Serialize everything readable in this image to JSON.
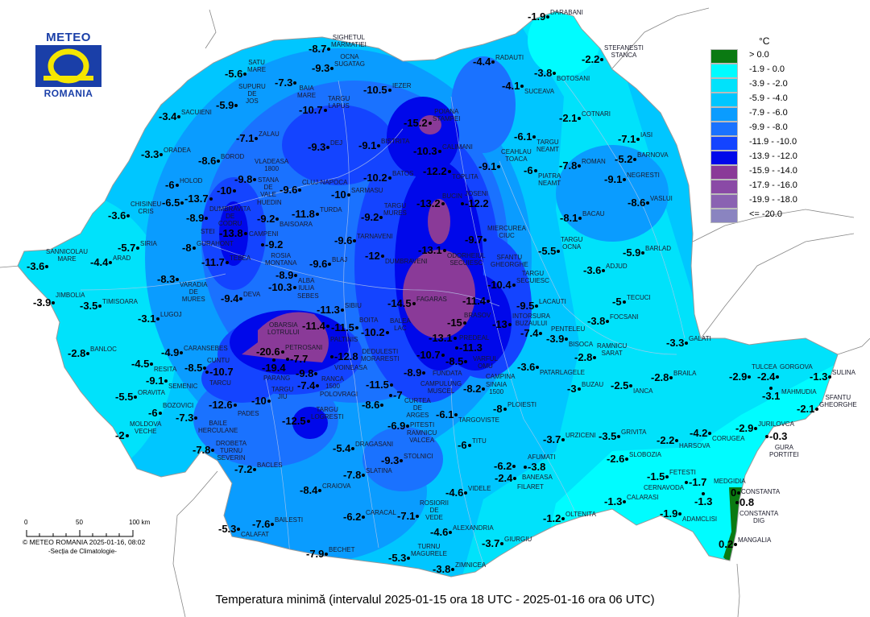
{
  "logo": {
    "top": "METEO",
    "bottom": "ROMANIA"
  },
  "legend": {
    "unit": "°C",
    "classes": [
      {
        "label": "> 0.0",
        "color": "#0a7a12"
      },
      {
        "label": "-1.9 - 0.0",
        "color": "#00fcff"
      },
      {
        "label": "-3.9 - -2.0",
        "color": "#00e2fb"
      },
      {
        "label": "-5.9 - -4.0",
        "color": "#00c6ff"
      },
      {
        "label": "-7.9 - -6.0",
        "color": "#0a9cff"
      },
      {
        "label": "-9.9 - -8.0",
        "color": "#1a72ff"
      },
      {
        "label": "-11.9 - -10.0",
        "color": "#1444ff"
      },
      {
        "label": "-13.9 - -12.0",
        "color": "#0008ea"
      },
      {
        "label": "-15.9 - -14.0",
        "color": "#8a3a98"
      },
      {
        "label": "-17.9 - -16.0",
        "color": "#8a4aa6"
      },
      {
        "label": "-19.9 - -18.0",
        "color": "#8a62b2"
      },
      {
        "label": "<= -20.0",
        "color": "#8a84c0"
      }
    ]
  },
  "scale_bar": {
    "ticks": [
      "0",
      "50",
      "100 km"
    ],
    "copyright": "© METEO ROMANIA 2025-01-16, 08:02",
    "section": "-Secția de Climatologie-"
  },
  "caption": "Temperatura minimă (intervalul 2025-01-15 ora 18 UTC - 2025-01-16 ora 06 UTC)",
  "stations": [
    {
      "name": "SACUIENI",
      "value": "-3.4"
    },
    {
      "name": "ORADEA",
      "value": "-3.3"
    },
    {
      "name": "BOROD",
      "value": "-8.6"
    },
    {
      "name": "HOLOD",
      "value": "-6"
    },
    {
      "name": "DUMBRAVITA\nDE\nCODRU",
      "value": "-6.5"
    },
    {
      "name": "STANA\nDE\nVALE",
      "value": "-13.7"
    },
    {
      "name": "CHISINEU\nCRIS",
      "value": "-3.6"
    },
    {
      "name": "STEI",
      "value": "-8.9"
    },
    {
      "name": "SIRIA",
      "value": "-5.7"
    },
    {
      "name": "GURAHONT",
      "value": "-8"
    },
    {
      "name": "SANNICOLAU\nMARE",
      "value": "-3.6"
    },
    {
      "name": "ARAD",
      "value": "-4.4"
    },
    {
      "name": "VARADIA\nDE\nMURES",
      "value": "-8.3"
    },
    {
      "name": "TEBEA",
      "value": "-11.7"
    },
    {
      "name": "SIGHETUL\nMARMATIEI",
      "value": "-8.7"
    },
    {
      "name": "OCNA\nSUGATAG",
      "value": "-9.3"
    },
    {
      "name": "SATU\nMARE",
      "value": "-5.6"
    },
    {
      "name": "BAIA\nMARE",
      "value": "-7.3"
    },
    {
      "name": "SUPURU\nDE\nJOS",
      "value": "-5.9"
    },
    {
      "name": "IEZER",
      "value": "-10.5"
    },
    {
      "name": "TARGU\nLAPUS",
      "value": "-10.7"
    },
    {
      "name": "ZALAU",
      "value": "-7.1"
    },
    {
      "name": "DEJ",
      "value": "-9.3"
    },
    {
      "name": "BISTRITA",
      "value": "-9.1"
    },
    {
      "name": "BAISOARA",
      "value": "-9.2"
    },
    {
      "name": "VLADEASA\n1800",
      "value": "-10"
    },
    {
      "name": "HUEDIN",
      "value": "-9.8"
    },
    {
      "name": "CLUJ-NAPOCA",
      "value": "-9.6"
    },
    {
      "name": "SARMASU",
      "value": "-10"
    },
    {
      "name": "TURDA",
      "value": "-11.8"
    },
    {
      "name": "TARGU\nMURES",
      "value": "-9.2"
    },
    {
      "name": "BATOS",
      "value": "-10.2"
    },
    {
      "name": "POIANA\nSTAMPEI",
      "value": "-15.2"
    },
    {
      "name": "CALIMANI",
      "value": "-10.3"
    },
    {
      "name": "TOPLITA",
      "value": "-12.2"
    },
    {
      "name": "CEAHLAU\nTOACA",
      "value": "-9.1"
    },
    {
      "name": "JOSENI",
      "value": "-12.2"
    },
    {
      "name": "BUCIN",
      "value": "-13.2"
    },
    {
      "name": "MIERCUREA\nCIUC",
      "value": "-9.7"
    },
    {
      "name": "ODORHEIUL\nSECUIESC",
      "value": "-13.1"
    },
    {
      "name": "DUMBRAVENI",
      "value": "-12"
    },
    {
      "name": "DARABANI",
      "value": "-1.9"
    },
    {
      "name": "STEFANESTI\nSTANCA",
      "value": "-2.2"
    },
    {
      "name": "RADAUTI",
      "value": "-4.4"
    },
    {
      "name": "BOTOSANI",
      "value": "-3.8"
    },
    {
      "name": "SUCEAVA",
      "value": "-4.1"
    },
    {
      "name": "COTNARI",
      "value": "-2.1"
    },
    {
      "name": "TARGU\nNEAMT",
      "value": "-6.1"
    },
    {
      "name": "IASI",
      "value": "-7.1"
    },
    {
      "name": "BARNOVA",
      "value": "-5.2"
    },
    {
      "name": "PIATRA\nNEAMT",
      "value": "-6"
    },
    {
      "name": "ROMAN",
      "value": "-7.8"
    },
    {
      "name": "NEGRESTI",
      "value": "-9.1"
    },
    {
      "name": "VASLUI",
      "value": "-8.6"
    },
    {
      "name": "BACAU",
      "value": "-8.1"
    },
    {
      "name": "CAMPENI",
      "value": "-13.8"
    },
    {
      "name": "ROSIA\nMONTANA",
      "value": "-9.2"
    },
    {
      "name": "TARNAVENI",
      "value": "-9.6"
    },
    {
      "name": "BLAJ",
      "value": "-9.6"
    },
    {
      "name": "ALBA\nIULIA",
      "value": "-8.9"
    },
    {
      "name": "SEBES",
      "value": "-10.3"
    },
    {
      "name": "DEVA",
      "value": "-9.4"
    },
    {
      "name": "SIBIU",
      "value": "-11.3"
    },
    {
      "name": "FAGARAS",
      "value": "-14.5"
    },
    {
      "name": "BRASOV",
      "value": "-15"
    },
    {
      "name": "PALTINIS",
      "value": "-11.4"
    },
    {
      "name": "BOITA",
      "value": "-11.5"
    },
    {
      "name": "BALEA\nLAC",
      "value": "-10.2"
    },
    {
      "name": "PETROSANI",
      "value": "-20.6"
    },
    {
      "name": "PARANG",
      "value": "-19.4"
    },
    {
      "name": "OBARSIA\nLOTRULUI",
      "value": "-7.7"
    },
    {
      "name": "VOINEASA",
      "value": "-12.8"
    },
    {
      "name": "RANCA\n1500",
      "value": "-9.8"
    },
    {
      "name": "POLOVRAGI",
      "value": "-7.4"
    },
    {
      "name": "VARFUL\nOMU",
      "value": "-13.1"
    },
    {
      "name": "PREDEAL",
      "value": "-11.3"
    },
    {
      "name": "SINAIA\n1500",
      "value": "-8.5"
    },
    {
      "name": "FUNDATA",
      "value": "-10.7"
    },
    {
      "name": "CAMPULUNG\nMUSCEL",
      "value": "-8.9"
    },
    {
      "name": "CURTEA\nDE\nARGES",
      "value": "-11.5"
    },
    {
      "name": "RAMNICU\nVALCEA",
      "value": "-8.6"
    },
    {
      "name": "DEDULESTI\nMORARESTI",
      "value": "-7"
    },
    {
      "name": "CAMPINA",
      "value": "-8.2"
    },
    {
      "name": "PLOIESTI",
      "value": "-8"
    },
    {
      "name": "TARGOVISTE",
      "value": "-6.1"
    },
    {
      "name": "JIMBOLIA",
      "value": "-3.9"
    },
    {
      "name": "TIMISOARA",
      "value": "-3.5"
    },
    {
      "name": "LUGOJ",
      "value": "-3.1"
    },
    {
      "name": "BANLOC",
      "value": "-2.8"
    },
    {
      "name": "CARANSEBES",
      "value": "-4.9"
    },
    {
      "name": "RESITA",
      "value": "-4.5"
    },
    {
      "name": "CUNTU",
      "value": "-8.5"
    },
    {
      "name": "TARCU",
      "value": "-10.7"
    },
    {
      "name": "SEMENIC",
      "value": "-9.1"
    },
    {
      "name": "ORAVITA",
      "value": "-5.5"
    },
    {
      "name": "BOZOVICI",
      "value": "-6"
    },
    {
      "name": "BAILE\nHERCULANE",
      "value": "-7.3"
    },
    {
      "name": "MOLDOVA\nVECHE",
      "value": "-2"
    },
    {
      "name": "DROBETA\nTURNU\nSEVERIN",
      "value": "-7.8"
    },
    {
      "name": "BACLES",
      "value": "-7.2"
    },
    {
      "name": "PADES",
      "value": "-12.6"
    },
    {
      "name": "TARGU\nJIU",
      "value": "-10"
    },
    {
      "name": "TARGU\nLOGRESTI",
      "value": "-12.5"
    },
    {
      "name": "DRAGASANI",
      "value": "-5.4"
    },
    {
      "name": "PITESTI",
      "value": "-6.9"
    },
    {
      "name": "STOLNICI",
      "value": "-9.3"
    },
    {
      "name": "SLATINA",
      "value": "-7.8"
    },
    {
      "name": "CRAIOVA",
      "value": "-8.4"
    },
    {
      "name": "CARACAL",
      "value": "-6.2"
    },
    {
      "name": "ROSIORII\nDE\nVEDE",
      "value": "-7.1"
    },
    {
      "name": "CALAFAT",
      "value": "-5.3"
    },
    {
      "name": "BAILESTI",
      "value": "-7.6"
    },
    {
      "name": "BECHET",
      "value": "-7.9"
    },
    {
      "name": "TURNU\nMAGURELE",
      "value": "-5.3"
    },
    {
      "name": "ZIMNICEA",
      "value": "-3.8"
    },
    {
      "name": "ALEXANDRIA",
      "value": "-4.6"
    },
    {
      "name": "VIDELE",
      "value": "-4.6"
    },
    {
      "name": "TITU",
      "value": "-6"
    },
    {
      "name": "TARGU\nOCNA",
      "value": "-5.5"
    },
    {
      "name": "BARLAD",
      "value": "-5.9"
    },
    {
      "name": "ADJUD",
      "value": "-3.6"
    },
    {
      "name": "TARGU\nSECUIESC",
      "value": "-10.4"
    },
    {
      "name": "SFANTU\nGHEORGHE",
      "value": "-11.4"
    },
    {
      "name": "TECUCI",
      "value": "-5"
    },
    {
      "name": "LACAUTI",
      "value": "-9.5"
    },
    {
      "name": "INTORSURA\nBUZAULUI",
      "value": "-13"
    },
    {
      "name": "FOCSANI",
      "value": "-3.8"
    },
    {
      "name": "PENTELEU",
      "value": "-7.4"
    },
    {
      "name": "BISOCA",
      "value": "-3.9"
    },
    {
      "name": "GALATI",
      "value": "-3.3"
    },
    {
      "name": "RAMNICU\nSARAT",
      "value": "-2.8"
    },
    {
      "name": "PATARLAGELE",
      "value": "-3.6"
    },
    {
      "name": "BRAILA",
      "value": "-2.8"
    },
    {
      "name": "IANCA",
      "value": "-2.5"
    },
    {
      "name": "BUZAU",
      "value": "-3"
    },
    {
      "name": "URZICENI",
      "value": "-3.7"
    },
    {
      "name": "GRIVITA",
      "value": "-3.5"
    },
    {
      "name": "HARSOVA",
      "value": "-2.2"
    },
    {
      "name": "CORUGEA",
      "value": "-4.2"
    },
    {
      "name": "JURILOVCA",
      "value": "-2.9"
    },
    {
      "name": "SLOBOZIA",
      "value": "-2.6"
    },
    {
      "name": "AFUMATI",
      "value": "-3.8"
    },
    {
      "name": "BANEASA",
      "value": "-6.2"
    },
    {
      "name": "FILARET",
      "value": "-2.4"
    },
    {
      "name": "FETESTI",
      "value": "-1.5"
    },
    {
      "name": "CERNAVODA",
      "value": "-1.7"
    },
    {
      "name": "CALARASI",
      "value": "-1.3"
    },
    {
      "name": "MEDGIDIA",
      "value": "-1.3"
    },
    {
      "name": "OLTENITA",
      "value": "-1.2"
    },
    {
      "name": "ADAMCLISI",
      "value": "-1.9"
    },
    {
      "name": "GIURGIU",
      "value": "-3.7"
    },
    {
      "name": "CONSTANTA",
      "value": "0"
    },
    {
      "name": "CONSTANTA\nDIG",
      "value": "0.8"
    },
    {
      "name": "MANGALIA",
      "value": "0.2"
    },
    {
      "name": "TULCEA",
      "value": "-2.9"
    },
    {
      "name": "GORGOVA",
      "value": "-2.4"
    },
    {
      "name": "MAHMUDIA",
      "value": "-3.1"
    },
    {
      "name": "SULINA",
      "value": "-1.3"
    },
    {
      "name": "SFANTU\nGHEORGHE",
      "value": "-2.1"
    },
    {
      "name": "GURA\nPORTITEI",
      "value": "-0.3"
    }
  ]
}
